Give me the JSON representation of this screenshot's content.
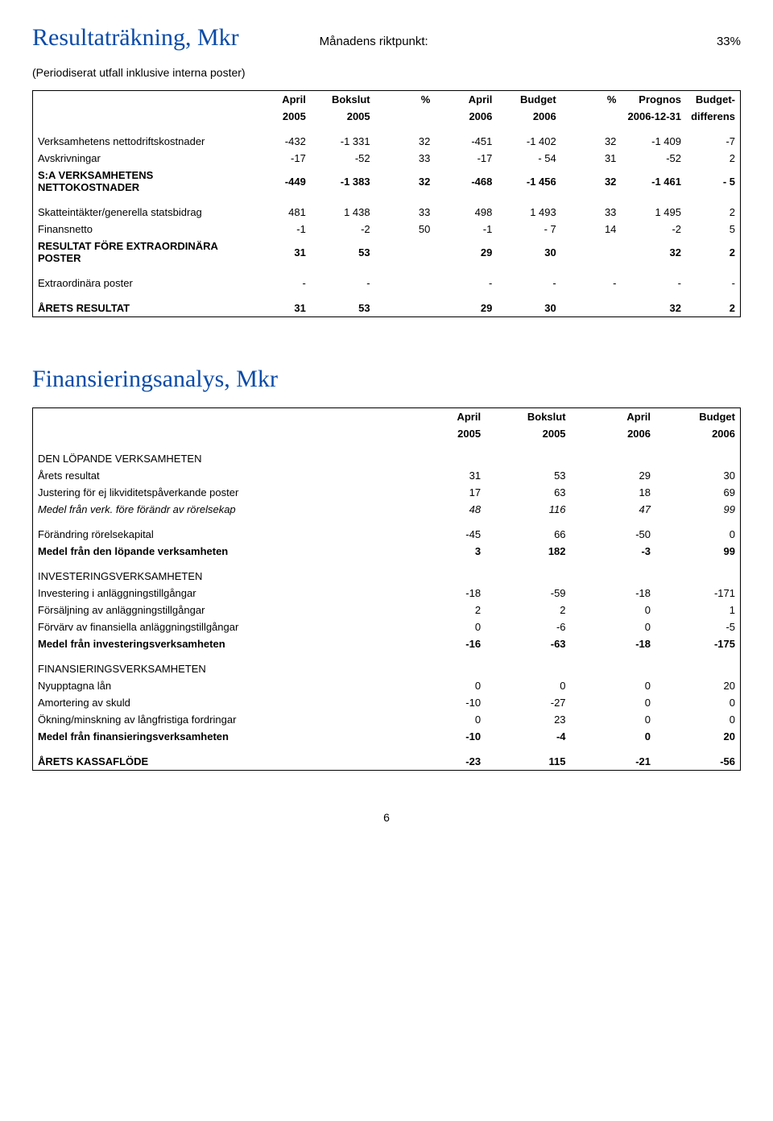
{
  "resultat": {
    "title": "Resultaträkning, Mkr",
    "subtitle": "Månadens riktpunkt:",
    "pct": "33%",
    "note": "(Periodiserat utfall inklusive interna poster)",
    "head1": [
      "April",
      "Bokslut",
      "%",
      "April",
      "Budget",
      "%",
      "Prognos",
      "Budget-"
    ],
    "head2": [
      "2005",
      "2005",
      "",
      "2006",
      "2006",
      "",
      "2006-12-31",
      "differens"
    ],
    "rows": [
      {
        "label": "Verksamhetens nettodriftskostnader",
        "v": [
          "-432",
          "-1 331",
          "32",
          "-451",
          "-1 402",
          "32",
          "-1 409",
          "-7"
        ],
        "bold": false
      },
      {
        "label": "Avskrivningar",
        "v": [
          "-17",
          "-52",
          "33",
          "-17",
          "- 54",
          "31",
          "-52",
          "2"
        ],
        "bold": false
      },
      {
        "label": "S:A VERKSAMHETENS NETTOKOSTNADER",
        "v": [
          "-449",
          "-1 383",
          "32",
          "-468",
          "-1 456",
          "32",
          "-1 461",
          "- 5"
        ],
        "bold": true
      }
    ],
    "rows2": [
      {
        "label": "Skatteintäkter/generella statsbidrag",
        "v": [
          "481",
          "1 438",
          "33",
          "498",
          "1 493",
          "33",
          "1 495",
          "2"
        ],
        "bold": false
      },
      {
        "label": "Finansnetto",
        "v": [
          "-1",
          "-2",
          "50",
          "-1",
          "- 7",
          "14",
          "-2",
          "5"
        ],
        "bold": false
      },
      {
        "label": "RESULTAT FÖRE EXTRAORDINÄRA POSTER",
        "v": [
          "31",
          "53",
          "",
          "29",
          "30",
          "",
          "32",
          "2"
        ],
        "bold": true
      }
    ],
    "rows3": [
      {
        "label": "Extraordinära poster",
        "v": [
          "-",
          "-",
          "",
          "-",
          "-",
          "-",
          "-",
          "-"
        ],
        "bold": false
      }
    ],
    "rows4": [
      {
        "label": "ÅRETS RESULTAT",
        "v": [
          "31",
          "53",
          "",
          "29",
          "30",
          "",
          "32",
          "2"
        ],
        "bold": true
      }
    ]
  },
  "finans": {
    "title": "Finansieringsanalys, Mkr",
    "head1": [
      "April",
      "Bokslut",
      "April",
      "Budget"
    ],
    "head2": [
      "2005",
      "2005",
      "2006",
      "2006"
    ],
    "groups": [
      {
        "header": "DEN LÖPANDE VERKSAMHETEN",
        "rows": [
          {
            "label": "Årets resultat",
            "v": [
              "31",
              "53",
              "29",
              "30"
            ]
          },
          {
            "label": "Justering för ej likviditetspåverkande poster",
            "v": [
              "17",
              "63",
              "18",
              "69"
            ]
          }
        ],
        "subtotal": {
          "label": "Medel från verk. före förändr av rörelsekap",
          "v": [
            "48",
            "116",
            "47",
            "99"
          ],
          "italic": true
        },
        "rows2": [
          {
            "label": "Förändring rörelsekapital",
            "v": [
              "-45",
              "66",
              "-50",
              "0"
            ]
          }
        ],
        "total": {
          "label": "Medel från den löpande verksamheten",
          "v": [
            "3",
            "182",
            "-3",
            "99"
          ],
          "bold": true
        }
      },
      {
        "header": "INVESTERINGSVERKSAMHETEN",
        "rows": [
          {
            "label": "Investering i anläggningstillgångar",
            "v": [
              "-18",
              "-59",
              "-18",
              "-171"
            ]
          },
          {
            "label": "Försäljning av anläggningstillgångar",
            "v": [
              "2",
              "2",
              "0",
              "1"
            ]
          },
          {
            "label": "Förvärv av finansiella anläggningstillgångar",
            "v": [
              "0",
              "-6",
              "0",
              "-5"
            ]
          }
        ],
        "total": {
          "label": "Medel från investeringsverksamheten",
          "v": [
            "-16",
            "-63",
            "-18",
            "-175"
          ],
          "bold": true
        }
      },
      {
        "header": "FINANSIERINGSVERKSAMHETEN",
        "rows": [
          {
            "label": "Nyupptagna lån",
            "v": [
              "0",
              "0",
              "0",
              "20"
            ]
          },
          {
            "label": "Amortering av skuld",
            "v": [
              "-10",
              "-27",
              "0",
              "0"
            ]
          },
          {
            "label": "Ökning/minskning av långfristiga fordringar",
            "v": [
              "0",
              "23",
              "0",
              "0"
            ]
          }
        ],
        "total": {
          "label": "Medel från finansieringsverksamheten",
          "v": [
            "-10",
            "-4",
            "0",
            "20"
          ],
          "bold": true
        }
      }
    ],
    "final": {
      "label": "ÅRETS KASSAFLÖDE",
      "v": [
        "-23",
        "115",
        "-21",
        "-56"
      ],
      "bold": true
    }
  },
  "page": "6"
}
